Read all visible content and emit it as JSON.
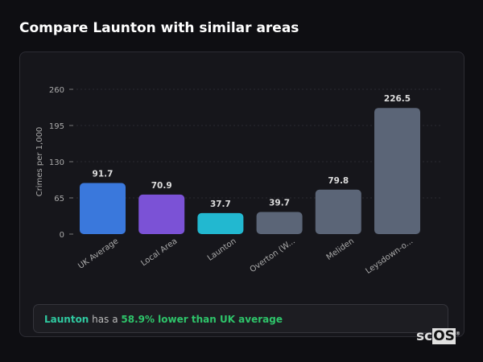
{
  "header": {
    "title": "Compare Launton with similar areas"
  },
  "chart_data": {
    "type": "bar",
    "categories": [
      "UK Average",
      "Local Area",
      "Launton",
      "Overton (W...",
      "Meliden",
      "Leysdown-o..."
    ],
    "values": [
      91.7,
      70.9,
      37.7,
      39.7,
      79.8,
      226.5
    ],
    "colors": [
      "#3a78dc",
      "#7b52d6",
      "#22b8d0",
      "#5b6577",
      "#5b6577",
      "#5b6577"
    ],
    "ylabel": "Crimes per 1,000",
    "ylim": [
      0,
      260
    ],
    "yticks": [
      0,
      65,
      130,
      195,
      260
    ],
    "grid": true,
    "legend": "none"
  },
  "summary": {
    "area": "Launton",
    "middle": " has a ",
    "comparison": "58.9% lower than UK average"
  },
  "logo": {
    "text_a": "sc",
    "text_b": "OS",
    "mark": "®"
  }
}
